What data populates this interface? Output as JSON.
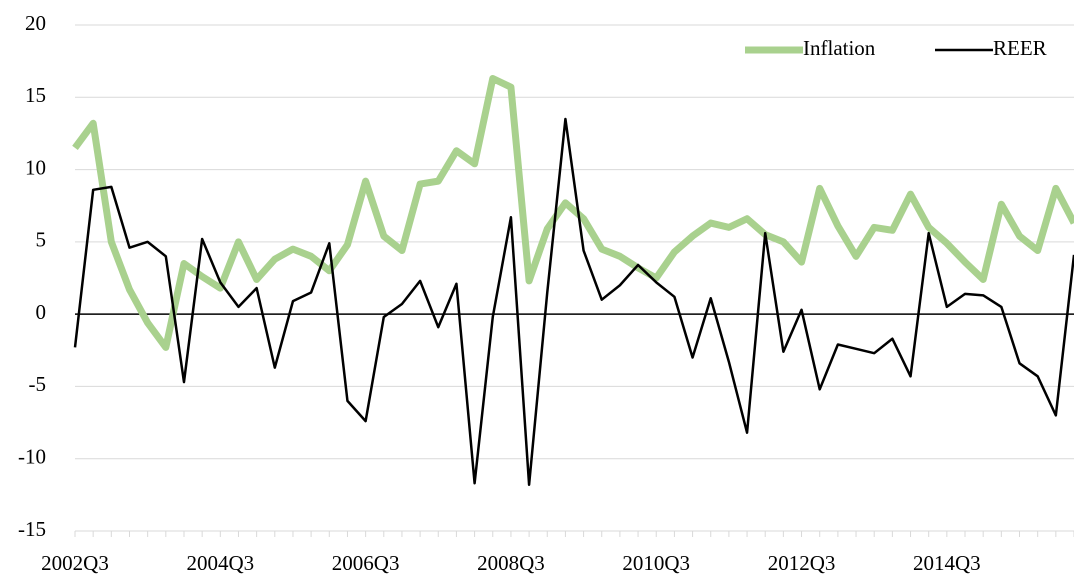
{
  "chart_data": {
    "type": "line",
    "categories": [
      "2002Q3",
      null,
      null,
      null,
      null,
      null,
      null,
      null,
      "2004Q3",
      null,
      null,
      null,
      null,
      null,
      null,
      null,
      "2006Q3",
      null,
      null,
      null,
      null,
      null,
      null,
      null,
      "2008Q3",
      null,
      null,
      null,
      null,
      null,
      null,
      null,
      "2010Q3",
      null,
      null,
      null,
      null,
      null,
      null,
      null,
      "2012Q3",
      null,
      null,
      null,
      null,
      null,
      null,
      null,
      "2014Q3",
      null,
      null,
      null,
      null,
      null,
      null,
      null
    ],
    "series": [
      {
        "name": "Inflation",
        "color": "#a9d18e",
        "values": [
          11.5,
          13.2,
          5,
          1.7,
          -0.6,
          -2.3,
          3.5,
          2.6,
          1.8,
          5,
          2.4,
          3.8,
          4.5,
          4,
          3,
          4.8,
          9.2,
          5.4,
          4.4,
          9,
          9.2,
          11.3,
          10.4,
          16.3,
          15.7,
          2.3,
          5.9,
          7.7,
          6.6,
          4.5,
          4,
          3.2,
          2.5,
          4.3,
          5.4,
          6.3,
          6,
          6.6,
          5.5,
          5,
          3.6,
          8.7,
          6.1,
          4,
          6,
          5.8,
          8.3,
          6,
          4.9,
          3.6,
          2.4,
          7.6,
          5.4,
          4.4,
          8.7,
          6.3
        ]
      },
      {
        "name": "REER",
        "color": "#000000",
        "values": [
          -2.3,
          8.6,
          8.8,
          4.6,
          5,
          4,
          -4.7,
          5.2,
          2.2,
          0.5,
          1.8,
          -3.7,
          0.9,
          1.5,
          4.9,
          -6,
          -7.4,
          -0.2,
          0.7,
          2.3,
          -0.9,
          2.1,
          -11.7,
          -0.2,
          6.7,
          -11.8,
          1.5,
          13.5,
          4.4,
          1,
          2,
          3.4,
          2.2,
          1.2,
          -3,
          1.1,
          -3.3,
          -8.2,
          5.6,
          -2.6,
          0.3,
          -5.2,
          -2.1,
          -2.4,
          -2.7,
          -1.7,
          -4.3,
          5.6,
          0.5,
          1.4,
          1.3,
          0.5,
          -3.4,
          -4.3,
          -7,
          4.1
        ]
      }
    ],
    "ylim": [
      -15,
      20
    ],
    "yticks": [
      -15,
      -10,
      -5,
      0,
      5,
      10,
      15,
      20
    ],
    "grid": true,
    "legend": "top-right"
  }
}
